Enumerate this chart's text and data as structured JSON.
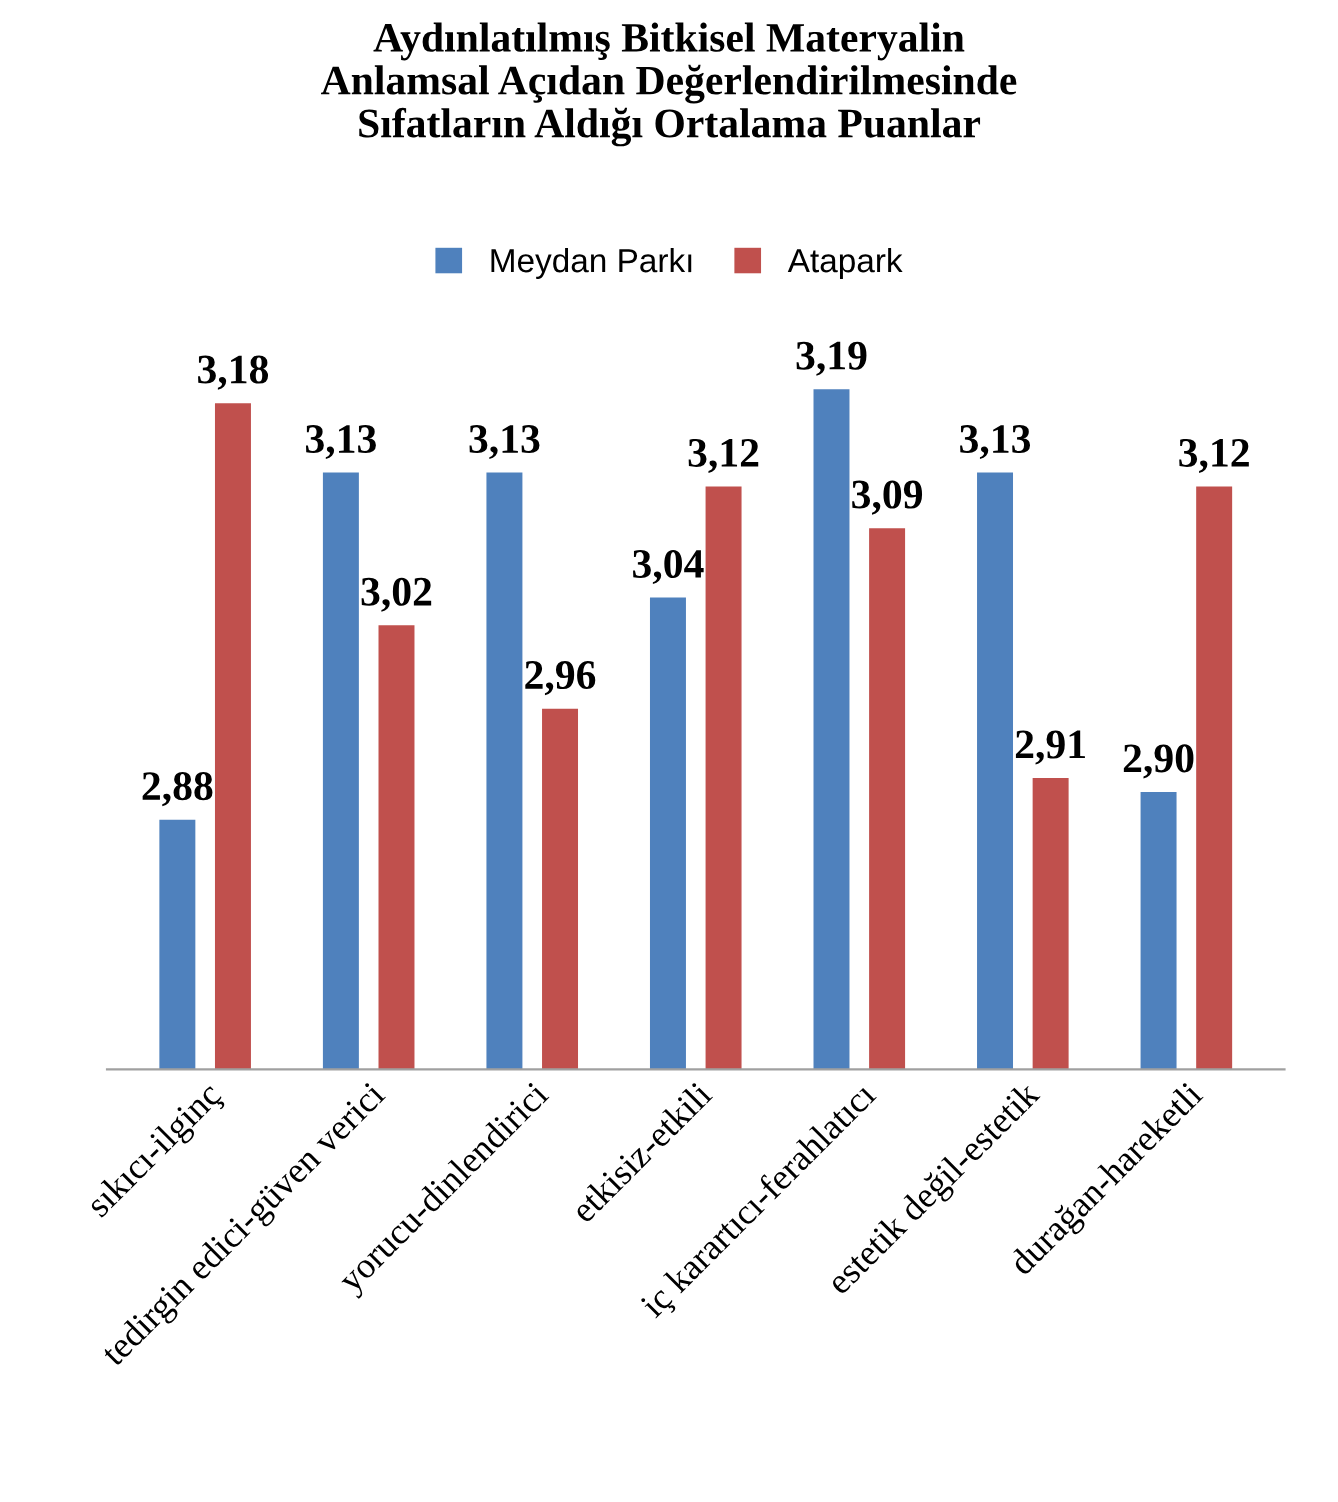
{
  "chart_data": {
    "type": "bar",
    "title": "Aydınlatılmış Bitkisel Materyalin\nAnlamsal Açıdan Değerlendirilmesinde\nSıfatların Aldığı Ortalama Puanlar",
    "categories": [
      "sıkıcı-ilginç",
      "tedirgin edici-güven verici",
      "yorucu-dinlendirici",
      "etkisiz-etkili",
      "iç karartıcı-ferahlatıcı",
      "estetik değil-estetik",
      "durağan-hareketli"
    ],
    "series": [
      {
        "name": "Meydan Parkı",
        "color": "#4f81bd",
        "values": [
          2.88,
          3.13,
          3.13,
          3.04,
          3.19,
          3.13,
          2.9
        ],
        "value_labels": [
          "2,88",
          "3,13",
          "3,13",
          "3,04",
          "3,19",
          "3,13",
          "2,90"
        ]
      },
      {
        "name": "Atapark",
        "color": "#c0504d",
        "values": [
          3.18,
          3.02,
          2.96,
          3.12,
          3.09,
          2.91,
          3.12
        ],
        "value_labels": [
          "3,18",
          "3,02",
          "2,96",
          "3,12",
          "3,09",
          "2,91",
          "3,12"
        ]
      }
    ],
    "tick_labels": "x",
    "legend": "top",
    "grid": false
  }
}
